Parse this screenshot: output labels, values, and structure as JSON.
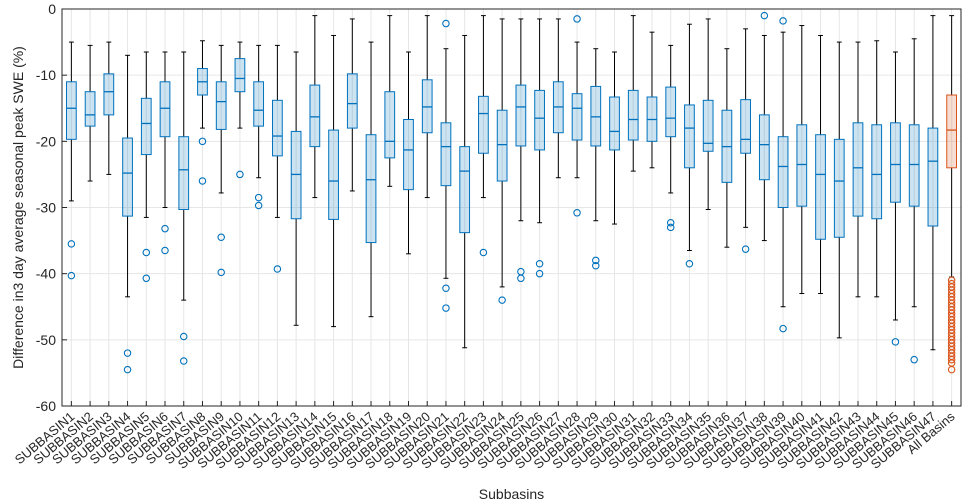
{
  "chart_data": {
    "type": "boxplot",
    "xlabel": "Subbasins",
    "ylabel": "Difference in3 day average seasonal peak SWE (%)",
    "ylim": [
      -60,
      0
    ],
    "yticks": [
      0,
      -10,
      -20,
      -30,
      -40,
      -50,
      -60
    ],
    "grid": true,
    "colors": {
      "box_default": "#0072BD",
      "box_highlight": "#D95319",
      "whisker": "#000000",
      "grid": "#e6e6e6"
    },
    "categories": [
      "SUBBASIN1",
      "SUBBASIN2",
      "SUBBASIN3",
      "SUBBASIN4",
      "SUBBASIN5",
      "SUBBASIN6",
      "SUBBASIN7",
      "SUBBASIN8",
      "SUBBASIN9",
      "SUBBASIN10",
      "SUBBASIN11",
      "SUBBASIN12",
      "SUBBASIN13",
      "SUBBASIN14",
      "SUBBASIN15",
      "SUBBASIN16",
      "SUBBASIN17",
      "SUBBASIN18",
      "SUBBASIN19",
      "SUBBASIN20",
      "SUBBASIN21",
      "SUBBASIN22",
      "SUBBASIN23",
      "SUBBASIN24",
      "SUBBASIN25",
      "SUBBASIN26",
      "SUBBASIN27",
      "SUBBASIN28",
      "SUBBASIN29",
      "SUBBASIN30",
      "SUBBASIN31",
      "SUBBASIN32",
      "SUBBASIN33",
      "SUBBASIN34",
      "SUBBASIN35",
      "SUBBASIN36",
      "SUBBASIN37",
      "SUBBASIN38",
      "SUBBASIN39",
      "SUBBASIN40",
      "SUBBASIN41",
      "SUBBASIN42",
      "SUBBASIN43",
      "SUBBASIN44",
      "SUBBASIN45",
      "SUBBASIN46",
      "SUBBASIN47",
      "All Basins"
    ],
    "boxes": [
      {
        "whisker_high": -5,
        "q3": -11,
        "median": -15,
        "q1": -19.7,
        "whisker_low": -29,
        "outliers": [
          -35.5,
          -40.3
        ]
      },
      {
        "whisker_high": -5.5,
        "q3": -12.5,
        "median": -16,
        "q1": -17.7,
        "whisker_low": -26,
        "outliers": []
      },
      {
        "whisker_high": -5,
        "q3": -9.8,
        "median": -12.5,
        "q1": -16,
        "whisker_low": -25,
        "outliers": []
      },
      {
        "whisker_high": -7,
        "q3": -19.5,
        "median": -24.8,
        "q1": -31.3,
        "whisker_low": -43.5,
        "outliers": [
          -52,
          -54.5
        ]
      },
      {
        "whisker_high": -6.5,
        "q3": -13.5,
        "median": -17.3,
        "q1": -22,
        "whisker_low": -31.5,
        "outliers": [
          -36.8,
          -40.7
        ]
      },
      {
        "whisker_high": -6.5,
        "q3": -11,
        "median": -15,
        "q1": -19.3,
        "whisker_low": -30,
        "outliers": [
          -33.2,
          -36.5
        ]
      },
      {
        "whisker_high": -6.5,
        "q3": -19.3,
        "median": -24.3,
        "q1": -30.3,
        "whisker_low": -44,
        "outliers": [
          -49.5,
          -53.2
        ]
      },
      {
        "whisker_high": -4.8,
        "q3": -9,
        "median": -11,
        "q1": -13,
        "whisker_low": -18,
        "outliers": [
          -20,
          -26
        ]
      },
      {
        "whisker_high": -5.5,
        "q3": -11,
        "median": -14,
        "q1": -18.2,
        "whisker_low": -27.8,
        "outliers": [
          -34.5,
          -39.8
        ]
      },
      {
        "whisker_high": -5,
        "q3": -7.5,
        "median": -10.5,
        "q1": -12.5,
        "whisker_low": -18,
        "outliers": [
          -25
        ]
      },
      {
        "whisker_high": -5.5,
        "q3": -11,
        "median": -15.3,
        "q1": -17.7,
        "whisker_low": -25.5,
        "outliers": [
          -28.5,
          -29.7
        ]
      },
      {
        "whisker_high": -5.5,
        "q3": -13.8,
        "median": -19.2,
        "q1": -22.2,
        "whisker_low": -31.5,
        "outliers": [
          -39.3
        ]
      },
      {
        "whisker_high": -6.5,
        "q3": -18.5,
        "median": -25,
        "q1": -31.7,
        "whisker_low": -47.8,
        "outliers": []
      },
      {
        "whisker_high": -1,
        "q3": -11.5,
        "median": -16.3,
        "q1": -20.8,
        "whisker_low": -28.5,
        "outliers": []
      },
      {
        "whisker_high": -4,
        "q3": -18.3,
        "median": -26,
        "q1": -31.8,
        "whisker_low": -48,
        "outliers": []
      },
      {
        "whisker_high": -1.5,
        "q3": -9.8,
        "median": -14.3,
        "q1": -18,
        "whisker_low": -27.5,
        "outliers": []
      },
      {
        "whisker_high": -5,
        "q3": -19,
        "median": -25.8,
        "q1": -35.3,
        "whisker_low": -46.5,
        "outliers": []
      },
      {
        "whisker_high": -1,
        "q3": -12.5,
        "median": -20,
        "q1": -22.5,
        "whisker_low": -26.8,
        "outliers": []
      },
      {
        "whisker_high": -6.5,
        "q3": -16.7,
        "median": -21.3,
        "q1": -27.3,
        "whisker_low": -37,
        "outliers": []
      },
      {
        "whisker_high": -1,
        "q3": -10.7,
        "median": -14.8,
        "q1": -18.7,
        "whisker_low": -28.5,
        "outliers": []
      },
      {
        "whisker_high": -6,
        "q3": -17.2,
        "median": -20.8,
        "q1": -26.7,
        "whisker_low": -40.7,
        "outliers": [
          -2.2,
          -42.2,
          -45.2
        ]
      },
      {
        "whisker_high": -4,
        "q3": -20.8,
        "median": -24.5,
        "q1": -33.8,
        "whisker_low": -51.2,
        "outliers": []
      },
      {
        "whisker_high": -1,
        "q3": -13.2,
        "median": -15.8,
        "q1": -21.8,
        "whisker_low": -28.5,
        "outliers": [
          -36.8
        ]
      },
      {
        "whisker_high": -1.5,
        "q3": -15.3,
        "median": -20.5,
        "q1": -26,
        "whisker_low": -42,
        "outliers": [
          -44
        ]
      },
      {
        "whisker_high": -1.5,
        "q3": -11.5,
        "median": -14.8,
        "q1": -20.7,
        "whisker_low": -32,
        "outliers": [
          -39.7,
          -40.7
        ]
      },
      {
        "whisker_high": -1.5,
        "q3": -12.3,
        "median": -16.5,
        "q1": -21.3,
        "whisker_low": -32.3,
        "outliers": [
          -38.5,
          -40
        ]
      },
      {
        "whisker_high": -1.5,
        "q3": -11,
        "median": -14.8,
        "q1": -18.7,
        "whisker_low": -25.5,
        "outliers": []
      },
      {
        "whisker_high": -5,
        "q3": -12.8,
        "median": -15,
        "q1": -19.8,
        "whisker_low": -25.5,
        "outliers": [
          -1.5,
          -30.8
        ]
      },
      {
        "whisker_high": -6,
        "q3": -11.7,
        "median": -16.3,
        "q1": -20.7,
        "whisker_low": -32,
        "outliers": [
          -38,
          -38.8
        ]
      },
      {
        "whisker_high": -6.5,
        "q3": -13.3,
        "median": -18.5,
        "q1": -21.3,
        "whisker_low": -32.5,
        "outliers": []
      },
      {
        "whisker_high": -1,
        "q3": -12.3,
        "median": -16.7,
        "q1": -19.8,
        "whisker_low": -24.5,
        "outliers": []
      },
      {
        "whisker_high": -3.5,
        "q3": -13.3,
        "median": -16.7,
        "q1": -20,
        "whisker_low": -24,
        "outliers": []
      },
      {
        "whisker_high": -5.5,
        "q3": -11.8,
        "median": -16.5,
        "q1": -19.3,
        "whisker_low": -27.8,
        "outliers": [
          -32.3,
          -33
        ]
      },
      {
        "whisker_high": -2.3,
        "q3": -14.5,
        "median": -18,
        "q1": -24,
        "whisker_low": -36.5,
        "outliers": [
          -38.5
        ]
      },
      {
        "whisker_high": -1.5,
        "q3": -13.8,
        "median": -20.3,
        "q1": -21.5,
        "whisker_low": -30.3,
        "outliers": []
      },
      {
        "whisker_high": -6,
        "q3": -15.3,
        "median": -20.8,
        "q1": -26.2,
        "whisker_low": -36,
        "outliers": []
      },
      {
        "whisker_high": -3,
        "q3": -13.7,
        "median": -19.7,
        "q1": -21.8,
        "whisker_low": -33,
        "outliers": [
          -36.3
        ]
      },
      {
        "whisker_high": -4,
        "q3": -16,
        "median": -20.5,
        "q1": -25.8,
        "whisker_low": -35,
        "outliers": [
          -1
        ]
      },
      {
        "whisker_high": -3.5,
        "q3": -19.3,
        "median": -23.8,
        "q1": -30,
        "whisker_low": -45,
        "outliers": [
          -1.8,
          -48.3
        ]
      },
      {
        "whisker_high": -2.5,
        "q3": -17.5,
        "median": -23.5,
        "q1": -29.8,
        "whisker_low": -43,
        "outliers": []
      },
      {
        "whisker_high": -4,
        "q3": -19,
        "median": -25,
        "q1": -34.8,
        "whisker_low": -43,
        "outliers": []
      },
      {
        "whisker_high": -5,
        "q3": -19.7,
        "median": -26,
        "q1": -34.5,
        "whisker_low": -49.7,
        "outliers": []
      },
      {
        "whisker_high": -5,
        "q3": -17.2,
        "median": -24,
        "q1": -31.3,
        "whisker_low": -43.5,
        "outliers": []
      },
      {
        "whisker_high": -4.8,
        "q3": -17.5,
        "median": -25,
        "q1": -31.7,
        "whisker_low": -43.5,
        "outliers": []
      },
      {
        "whisker_high": -6.5,
        "q3": -17.2,
        "median": -23.5,
        "q1": -29.2,
        "whisker_low": -47,
        "outliers": [
          -50.3
        ]
      },
      {
        "whisker_high": -4.5,
        "q3": -17.5,
        "median": -23.5,
        "q1": -29.8,
        "whisker_low": -45,
        "outliers": [
          -53
        ]
      },
      {
        "whisker_high": -1,
        "q3": -18,
        "median": -23,
        "q1": -32.8,
        "whisker_low": -51.5,
        "outliers": []
      },
      {
        "whisker_high": -1,
        "q3": -13,
        "median": -18.3,
        "q1": -24,
        "whisker_low": -40.5,
        "outliers": [
          -41,
          -41.5,
          -42,
          -42.5,
          -43,
          -43.5,
          -44,
          -44.5,
          -45,
          -45.5,
          -46,
          -46.5,
          -47,
          -47.5,
          -48,
          -48.5,
          -49,
          -49.5,
          -50,
          -50.5,
          -51,
          -51.5,
          -52,
          -52.5,
          -53,
          -53.5,
          -54.5
        ]
      }
    ]
  }
}
